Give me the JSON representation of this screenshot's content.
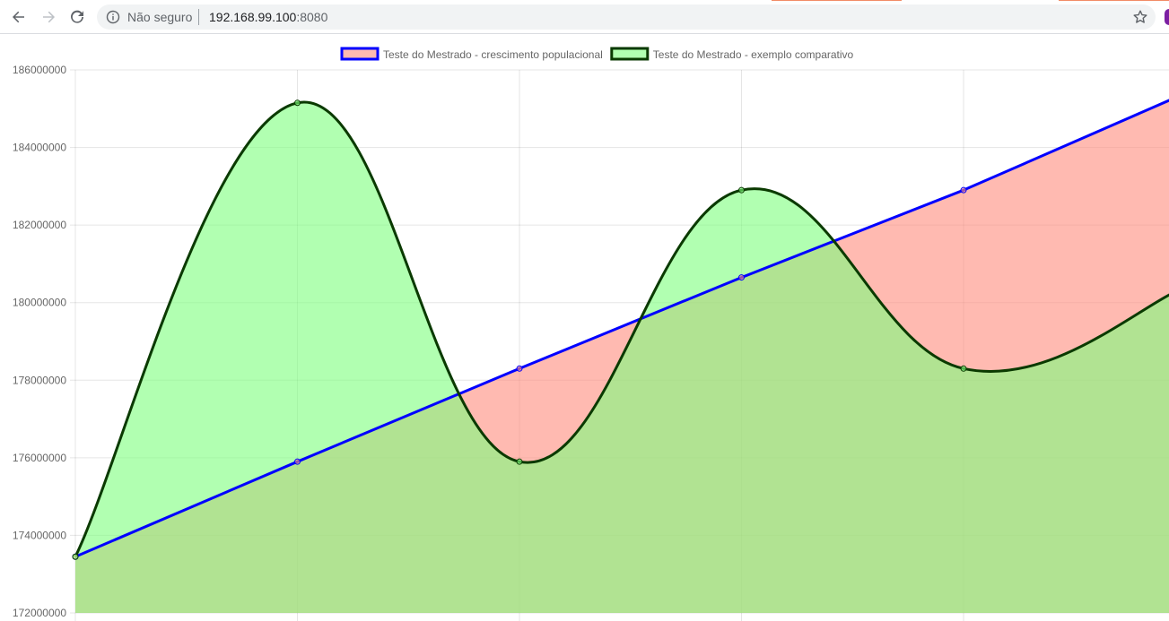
{
  "browser": {
    "security_status": "Não seguro",
    "url_host": "192.168.99.100",
    "url_port": ":8080",
    "icons": [
      "back-arrow-icon",
      "forward-arrow-icon",
      "reload-icon",
      "info-icon",
      "star-icon"
    ]
  },
  "chart_data": {
    "type": "line",
    "x": [
      "",
      "",
      "",
      "",
      "",
      ""
    ],
    "ylim": [
      172000000,
      186000000
    ],
    "yticks": [
      "186000000",
      "184000000",
      "182000000",
      "180000000",
      "178000000",
      "176000000",
      "174000000",
      "172000000"
    ],
    "grid": true,
    "legend_position": "top",
    "series": [
      {
        "name": "Teste do Mestrado - crescimento populacional",
        "values": [
          173450000,
          175900000,
          178300000,
          180650000,
          182900000,
          185400000
        ],
        "border_color": "#0000ff",
        "fill_color": "#ff8c7d",
        "fill": true,
        "smooth": false
      },
      {
        "name": "Teste do Mestrado - exemplo comparativo",
        "values": [
          173450000,
          185150000,
          175900000,
          182900000,
          178300000,
          180400000
        ],
        "border_color": "#0a3a00",
        "fill_color": "#7dff7d",
        "fill": true,
        "smooth": true
      }
    ]
  }
}
